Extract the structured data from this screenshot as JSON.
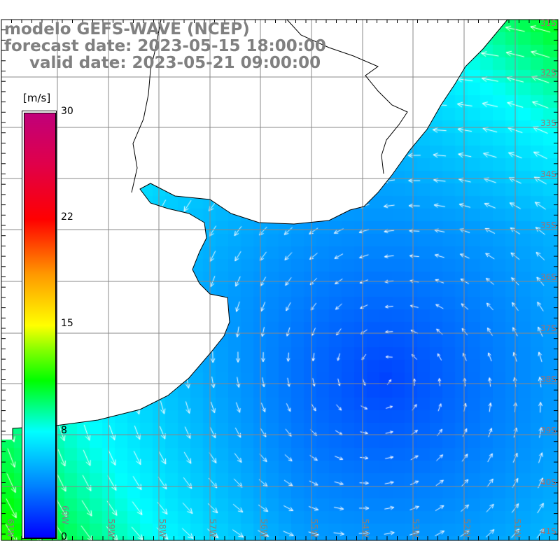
{
  "title": {
    "line1": "modelo GEFS-WAVE (NCEP)",
    "line2": "forecast date: 2023-05-15 18:00:00",
    "line3": "valid date: 2023-05-21 09:00:00"
  },
  "colorbar": {
    "unit": "[m/s]",
    "labels": [
      "30",
      "22",
      "15",
      "8",
      "0"
    ],
    "colors": [
      "#0000ff",
      "#00ffff",
      "#00ff00",
      "#ffff00",
      "#ff0000",
      "#c0007a"
    ]
  },
  "axes": {
    "lon_labels": [
      "61W",
      "60W",
      "59W",
      "58W",
      "57W",
      "56W",
      "55W",
      "54W",
      "53W",
      "52W",
      "51W"
    ],
    "lat_labels": [
      "31S",
      "32S",
      "33S",
      "34S",
      "35S",
      "36S",
      "37S",
      "38S",
      "39S",
      "40S",
      "41S"
    ]
  },
  "field": {
    "variable": "wind speed and direction",
    "min_speed_center_lonlat": [
      -54.4,
      -37.4
    ]
  }
}
